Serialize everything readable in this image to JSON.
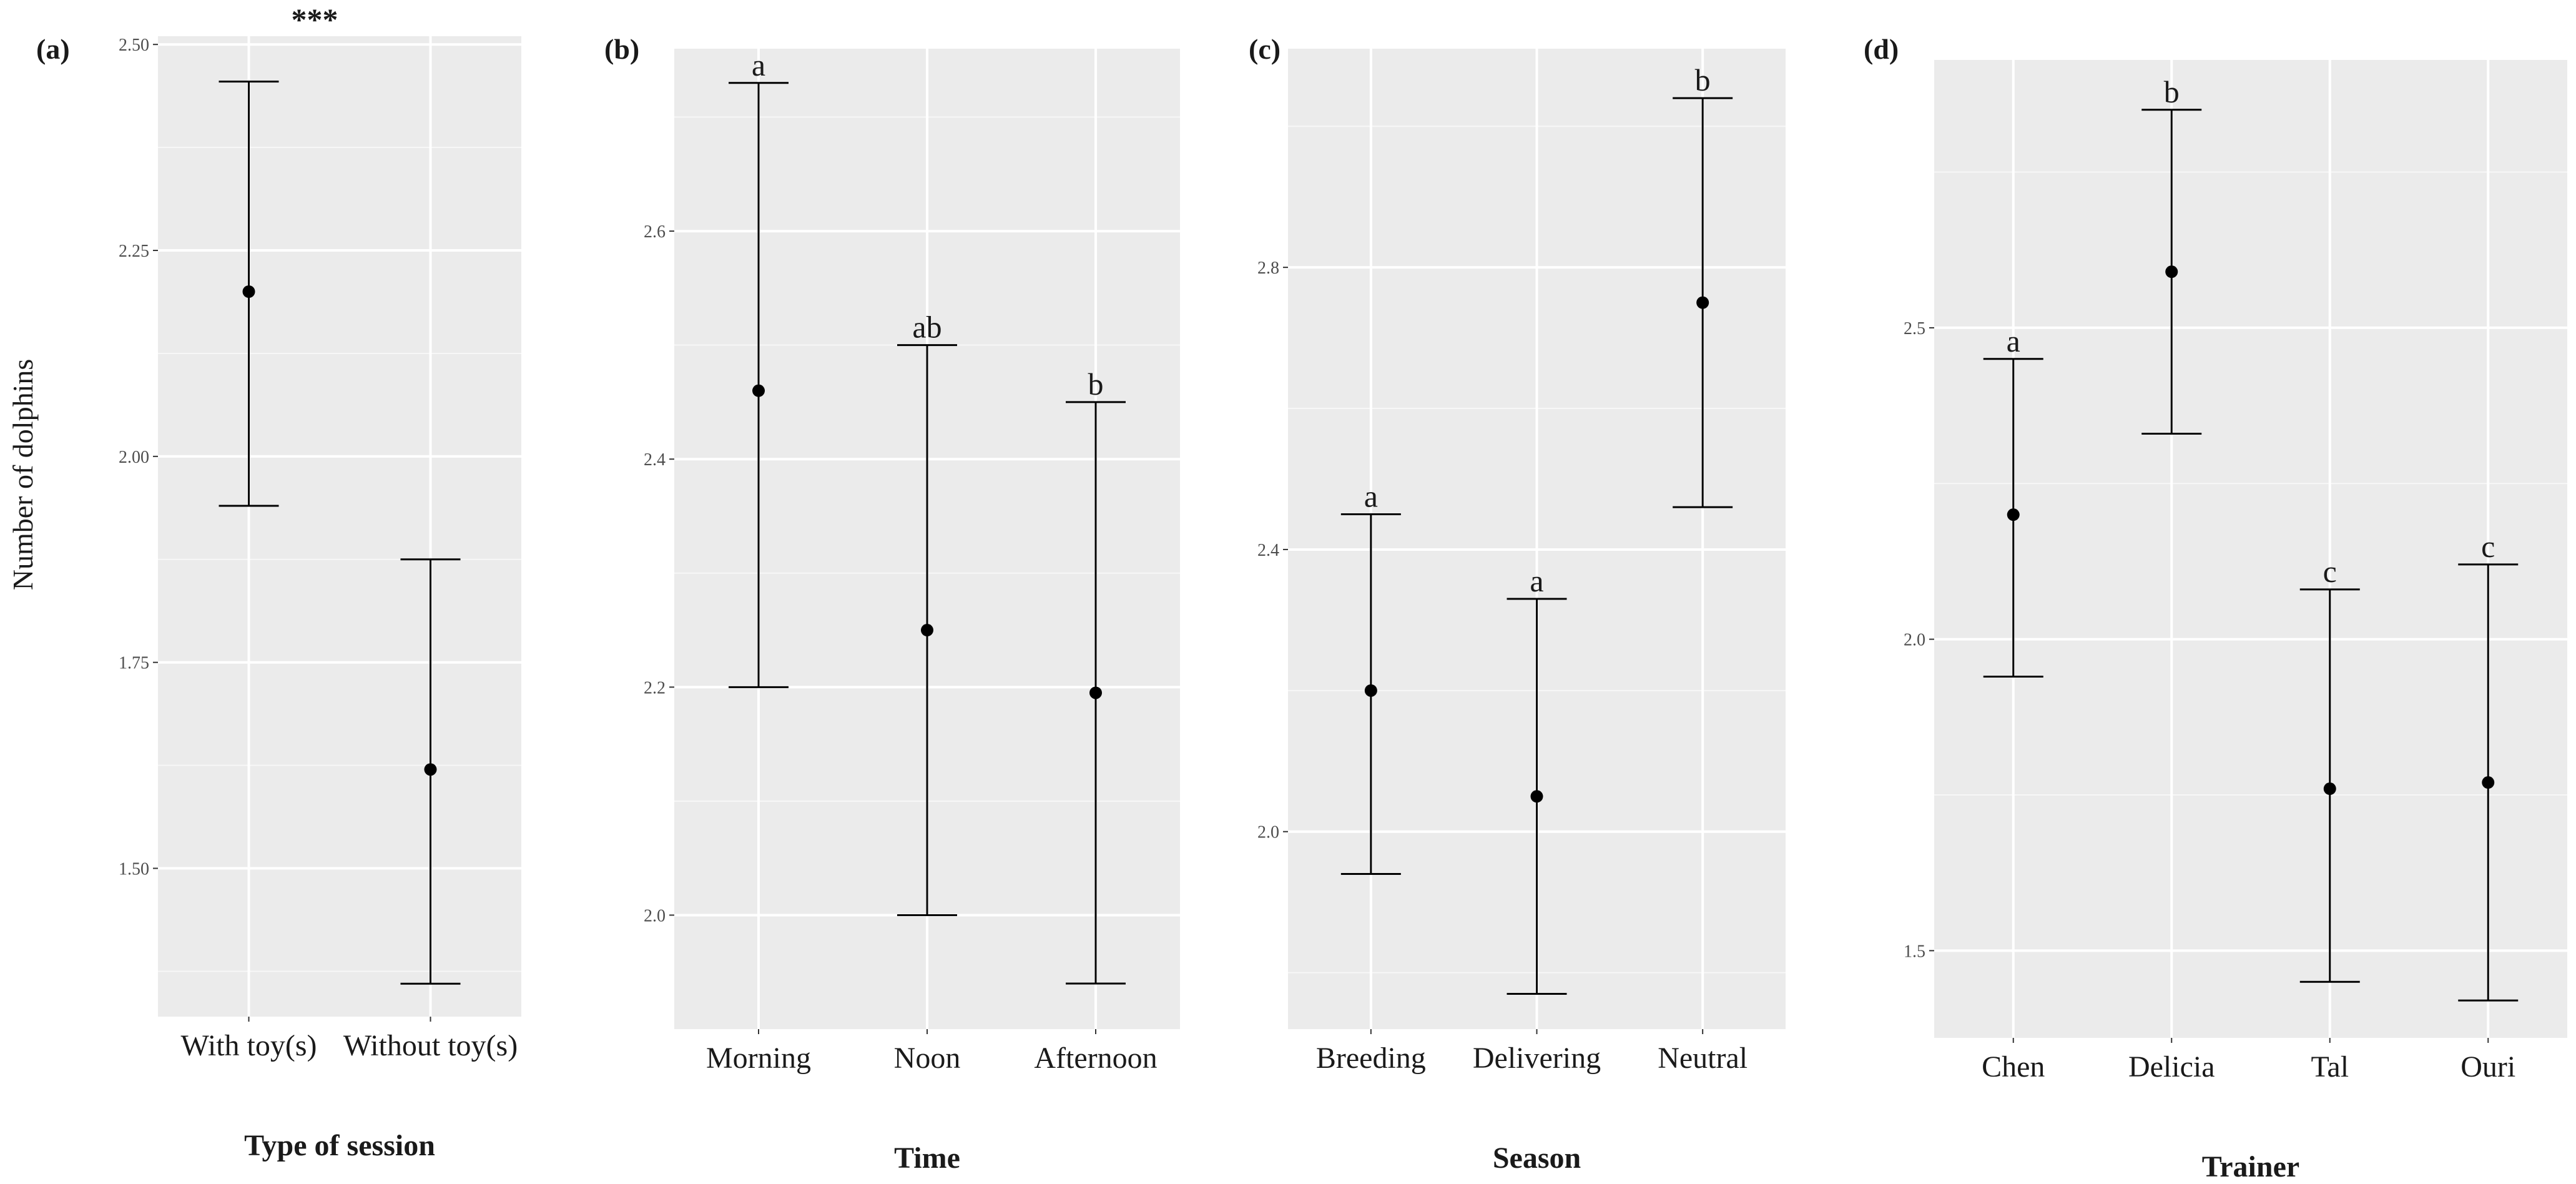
{
  "y_axis_label": "Number of dolphins",
  "chart_data": [
    {
      "type": "errorbar",
      "panel": "(a)",
      "xlabel": "Type of session",
      "ylabel": "Number of dolphins",
      "ylim": [
        1.32,
        2.51
      ],
      "yticks": [
        1.5,
        1.75,
        2.0,
        2.25,
        2.5
      ],
      "ytick_labels": [
        "1.50",
        "1.75",
        "2.00",
        "2.25",
        "2.50"
      ],
      "categories": [
        "With toy(s)",
        "Without toy(s)"
      ],
      "means": [
        2.2,
        1.62
      ],
      "lower": [
        1.94,
        1.36
      ],
      "upper": [
        2.455,
        1.875
      ],
      "significance": [],
      "title_annotation": "***"
    },
    {
      "type": "errorbar",
      "panel": "(b)",
      "xlabel": "Time",
      "ylabel": "",
      "ylim": [
        1.9,
        2.76
      ],
      "yticks": [
        2.0,
        2.2,
        2.4,
        2.6
      ],
      "ytick_labels": [
        "2.0",
        "2.2",
        "2.4",
        "2.6"
      ],
      "categories": [
        "Morning",
        "Noon",
        "Afternoon"
      ],
      "means": [
        2.46,
        2.25,
        2.195
      ],
      "lower": [
        2.2,
        2.0,
        1.94
      ],
      "upper": [
        2.73,
        2.5,
        2.45
      ],
      "significance": [
        "a",
        "ab",
        "b"
      ],
      "title_annotation": ""
    },
    {
      "type": "errorbar",
      "panel": "(c)",
      "xlabel": "Season",
      "ylabel": "",
      "ylim": [
        1.72,
        3.11
      ],
      "yticks": [
        2.0,
        2.4,
        2.8
      ],
      "ytick_labels": [
        "2.0",
        "2.4",
        "2.8"
      ],
      "categories": [
        "Breeding",
        "Delivering",
        "Neutral"
      ],
      "means": [
        2.2,
        2.05,
        2.75
      ],
      "lower": [
        1.94,
        1.77,
        2.46
      ],
      "upper": [
        2.45,
        2.33,
        3.04
      ],
      "significance": [
        "a",
        "a",
        "b"
      ],
      "title_annotation": ""
    },
    {
      "type": "errorbar",
      "panel": "(d)",
      "xlabel": "Trainer",
      "ylabel": "",
      "ylim": [
        1.36,
        2.93
      ],
      "yticks": [
        1.5,
        2.0,
        2.5
      ],
      "ytick_labels": [
        "1.5",
        "2.0",
        "2.5"
      ],
      "categories": [
        "Chen",
        "Delicia",
        "Tal",
        "Ouri"
      ],
      "means": [
        2.2,
        2.59,
        1.76,
        1.77
      ],
      "lower": [
        1.94,
        2.33,
        1.45,
        1.42
      ],
      "upper": [
        2.45,
        2.85,
        2.08,
        2.12
      ],
      "significance": [
        "a",
        "b",
        "c",
        "c"
      ],
      "title_annotation": ""
    }
  ]
}
